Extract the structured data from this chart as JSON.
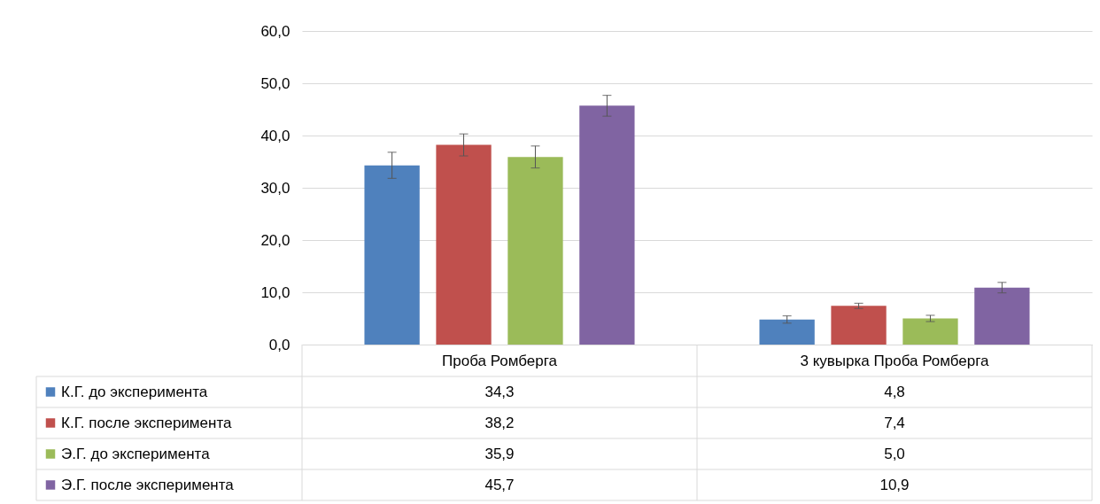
{
  "chart_data": {
    "type": "bar",
    "categories": [
      "Проба Ромберга",
      "3 кувырка Проба Ромберга"
    ],
    "series": [
      {
        "name": "К.Г. до эксперимента",
        "color": "#4f81bd",
        "values": [
          34.3,
          4.8
        ],
        "value_labels": [
          "34,3",
          "4,8"
        ],
        "errors": [
          2.5,
          0.7
        ]
      },
      {
        "name": "К.Г. после эксперимента",
        "color": "#c0504d",
        "values": [
          38.2,
          7.4
        ],
        "value_labels": [
          "38,2",
          "7,4"
        ],
        "errors": [
          2.1,
          0.5
        ]
      },
      {
        "name": "Э.Г. до эксперимента",
        "color": "#9bbb59",
        "values": [
          35.9,
          5.0
        ],
        "value_labels": [
          "35,9",
          "5,0"
        ],
        "errors": [
          2.1,
          0.6
        ]
      },
      {
        "name": "Э.Г. после эксперимента",
        "color": "#8064a2",
        "values": [
          45.7,
          10.9
        ],
        "value_labels": [
          "45,7",
          "10,9"
        ],
        "errors": [
          2.0,
          1.0
        ]
      }
    ],
    "ylim": [
      0,
      60
    ],
    "yticks": [
      {
        "value": 0,
        "label": "0,0"
      },
      {
        "value": 10,
        "label": "10,0"
      },
      {
        "value": 20,
        "label": "20,0"
      },
      {
        "value": 30,
        "label": "30,0"
      },
      {
        "value": 40,
        "label": "40,0"
      },
      {
        "value": 50,
        "label": "50,0"
      },
      {
        "value": 60,
        "label": "60,0"
      }
    ],
    "grid": "y",
    "legend": "bottom left"
  }
}
